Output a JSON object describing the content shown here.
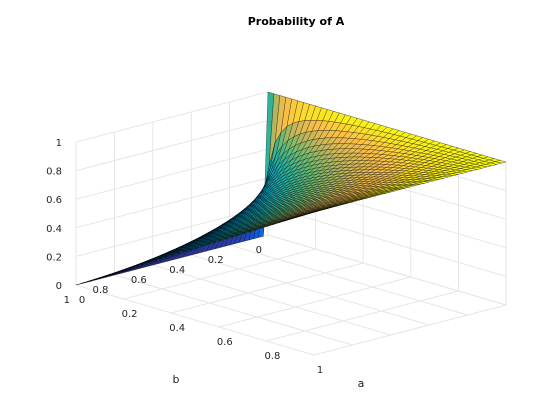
{
  "chart_data": {
    "type": "surface",
    "title": "Probability of A",
    "xlabel": "a",
    "ylabel": "b",
    "zlabel": "",
    "xlim": [
      0,
      1
    ],
    "ylim": [
      0,
      1
    ],
    "zlim": [
      0,
      1
    ],
    "x_ticks": [
      "0",
      "0.2",
      "0.4",
      "0.6",
      "0.8",
      "1"
    ],
    "y_ticks": [
      "0",
      "0.2",
      "0.4",
      "0.6",
      "0.8",
      "1"
    ],
    "z_ticks": [
      "0",
      "0.2",
      "0.4",
      "0.6",
      "0.8",
      "1"
    ],
    "grid": true,
    "colormap": "parula",
    "mesh_resolution": 40,
    "surface_function": "z = a / (a + b - a*b)",
    "sample_points": [
      {
        "a": 0,
        "b": 0,
        "z": 1
      },
      {
        "a": 1,
        "b": 0,
        "z": 1
      },
      {
        "a": 1,
        "b": 1,
        "z": 1
      },
      {
        "a": 0,
        "b": 1,
        "z": 0
      },
      {
        "a": 0.5,
        "b": 0.5,
        "z": 0.667
      },
      {
        "a": 0.2,
        "b": 0.8,
        "z": 0.238
      }
    ],
    "colors": {
      "low": "#352a87",
      "mid": "#21b1a3",
      "high": "#f9fb0e",
      "edge": "#000000",
      "grid": "#e6e6e6",
      "axis": "#262626"
    }
  }
}
